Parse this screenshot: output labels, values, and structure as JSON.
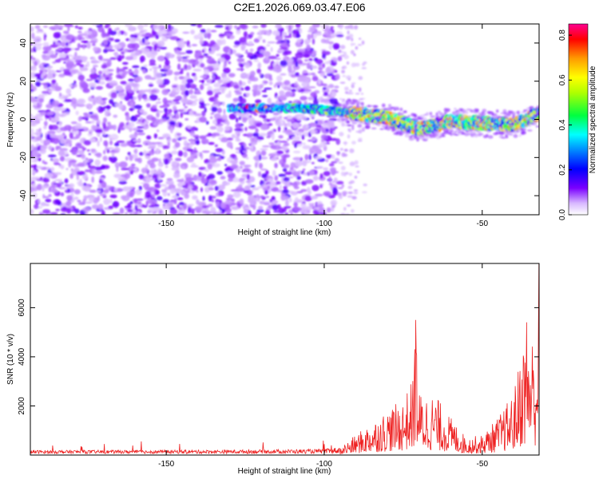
{
  "figure_title": "C2E1.2026.069.03.47.E06",
  "chart_data": [
    {
      "type": "heatmap",
      "title": "",
      "xlabel": "Height of straight line (km)",
      "ylabel": "Frequency (Hz)",
      "xlim": [
        -193,
        -32
      ],
      "ylim": [
        -50,
        50
      ],
      "xticks": [
        -150,
        -100,
        -50
      ],
      "yticks": [
        -40,
        -20,
        0,
        20,
        40
      ],
      "colorbar": {
        "label": "Normalized spectral amplitude",
        "range": [
          0,
          0.85
        ],
        "ticks": [
          0.0,
          0.2,
          0.4,
          0.6,
          0.8
        ]
      },
      "trace": {
        "description_points_km_hz": [
          [
            -130,
            6
          ],
          [
            -110,
            6
          ],
          [
            -100,
            5
          ],
          [
            -90,
            3
          ],
          [
            -80,
            1
          ],
          [
            -70,
            -5
          ],
          [
            -60,
            -1
          ],
          [
            -50,
            -2
          ],
          [
            -40,
            -3
          ],
          [
            -32,
            3
          ]
        ],
        "noise_region_km": [
          -193,
          -95
        ],
        "peak_amplitude": 0.85
      }
    },
    {
      "type": "line",
      "title": "",
      "xlabel": "Height of straight line (km)",
      "ylabel": "SNR (10 * v/v)",
      "xlim": [
        -193,
        -32
      ],
      "ylim": [
        0,
        7800
      ],
      "xticks": [
        -150,
        -100,
        -50
      ],
      "yticks": [
        2000,
        4000,
        6000
      ],
      "series": [
        {
          "name": "SNR",
          "color": "#ee2222",
          "envelope_km_snr": [
            [
              -193,
              150
            ],
            [
              -140,
              160
            ],
            [
              -100,
              200
            ],
            [
              -95,
              300
            ],
            [
              -90,
              800
            ],
            [
              -85,
              1300
            ],
            [
              -80,
              1800
            ],
            [
              -75,
              2200
            ],
            [
              -72,
              3000
            ],
            [
              -71,
              5500
            ],
            [
              -70,
              2500
            ],
            [
              -65,
              2400
            ],
            [
              -60,
              1500
            ],
            [
              -55,
              700
            ],
            [
              -50,
              800
            ],
            [
              -45,
              1500
            ],
            [
              -40,
              2500
            ],
            [
              -36,
              5400
            ],
            [
              -33,
              4500
            ],
            [
              -32,
              7800
            ]
          ]
        }
      ]
    }
  ]
}
